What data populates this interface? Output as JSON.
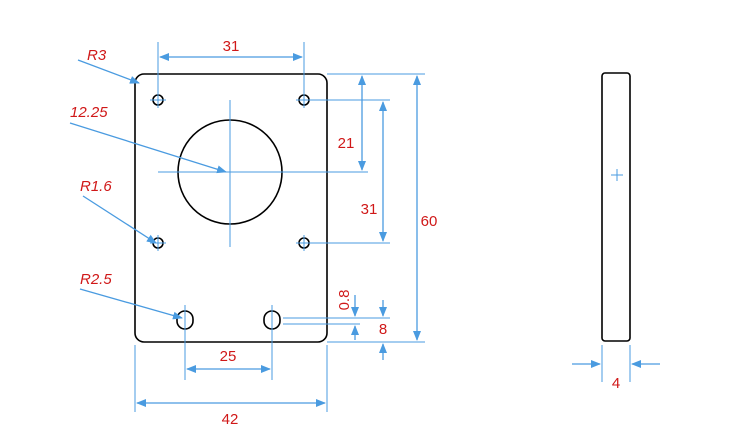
{
  "colors": {
    "outline": "#000000",
    "dimension_line": "#4a9be0",
    "dimension_text": "#d01818"
  },
  "dimensions": {
    "top_hole_spacing": "31",
    "bottom_hole_spacing": "25",
    "overall_width": "42",
    "center_offset": "21",
    "hole_spacing_vertical": "31",
    "overall_height": "60",
    "small_gap": "0.8",
    "bottom_offset": "8",
    "thickness": "4"
  },
  "callouts": {
    "corner_radius": "R3",
    "bore_diameter": "12.25",
    "small_hole_radius": "R1.6",
    "slot_radius": "R2.5"
  }
}
